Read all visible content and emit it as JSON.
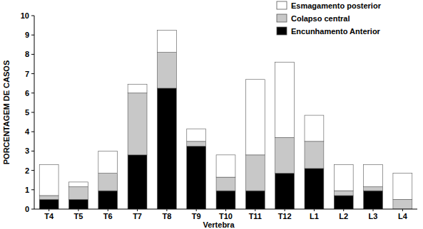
{
  "chart_data": {
    "type": "bar",
    "stacked": true,
    "legend": "upper right",
    "x_label": "Vertebra",
    "y_label": "PORCENTAGEM DE CASOS",
    "categories": [
      "T4",
      "T5",
      "T6",
      "T7",
      "T8",
      "T9",
      "T10",
      "T11",
      "T12",
      "L1",
      "L2",
      "L3",
      "L4"
    ],
    "series": [
      {
        "name": "Encunhamento Anterior",
        "color": "#000000",
        "values": [
          0.5,
          0.5,
          0.95,
          2.8,
          6.25,
          3.25,
          0.95,
          0.95,
          1.85,
          2.1,
          0.7,
          0.95,
          0
        ]
      },
      {
        "name": "Colapso central",
        "color": "#c8c8c8",
        "values": [
          0.2,
          0.65,
          0.9,
          3.2,
          1.85,
          0.25,
          0.7,
          1.85,
          1.85,
          1.4,
          0.25,
          0.2,
          0.5
        ]
      },
      {
        "name": "Esmagamento posterior",
        "color": "#ffffff",
        "values": [
          1.6,
          0.25,
          1.15,
          0.45,
          1.15,
          0.65,
          1.15,
          3.9,
          3.9,
          1.35,
          1.35,
          1.15,
          1.35
        ]
      }
    ],
    "ylim": [
      0,
      10
    ],
    "yticks": [
      0,
      1,
      2,
      3,
      4,
      5,
      6,
      7,
      8,
      9,
      10
    ],
    "grid": false
  }
}
